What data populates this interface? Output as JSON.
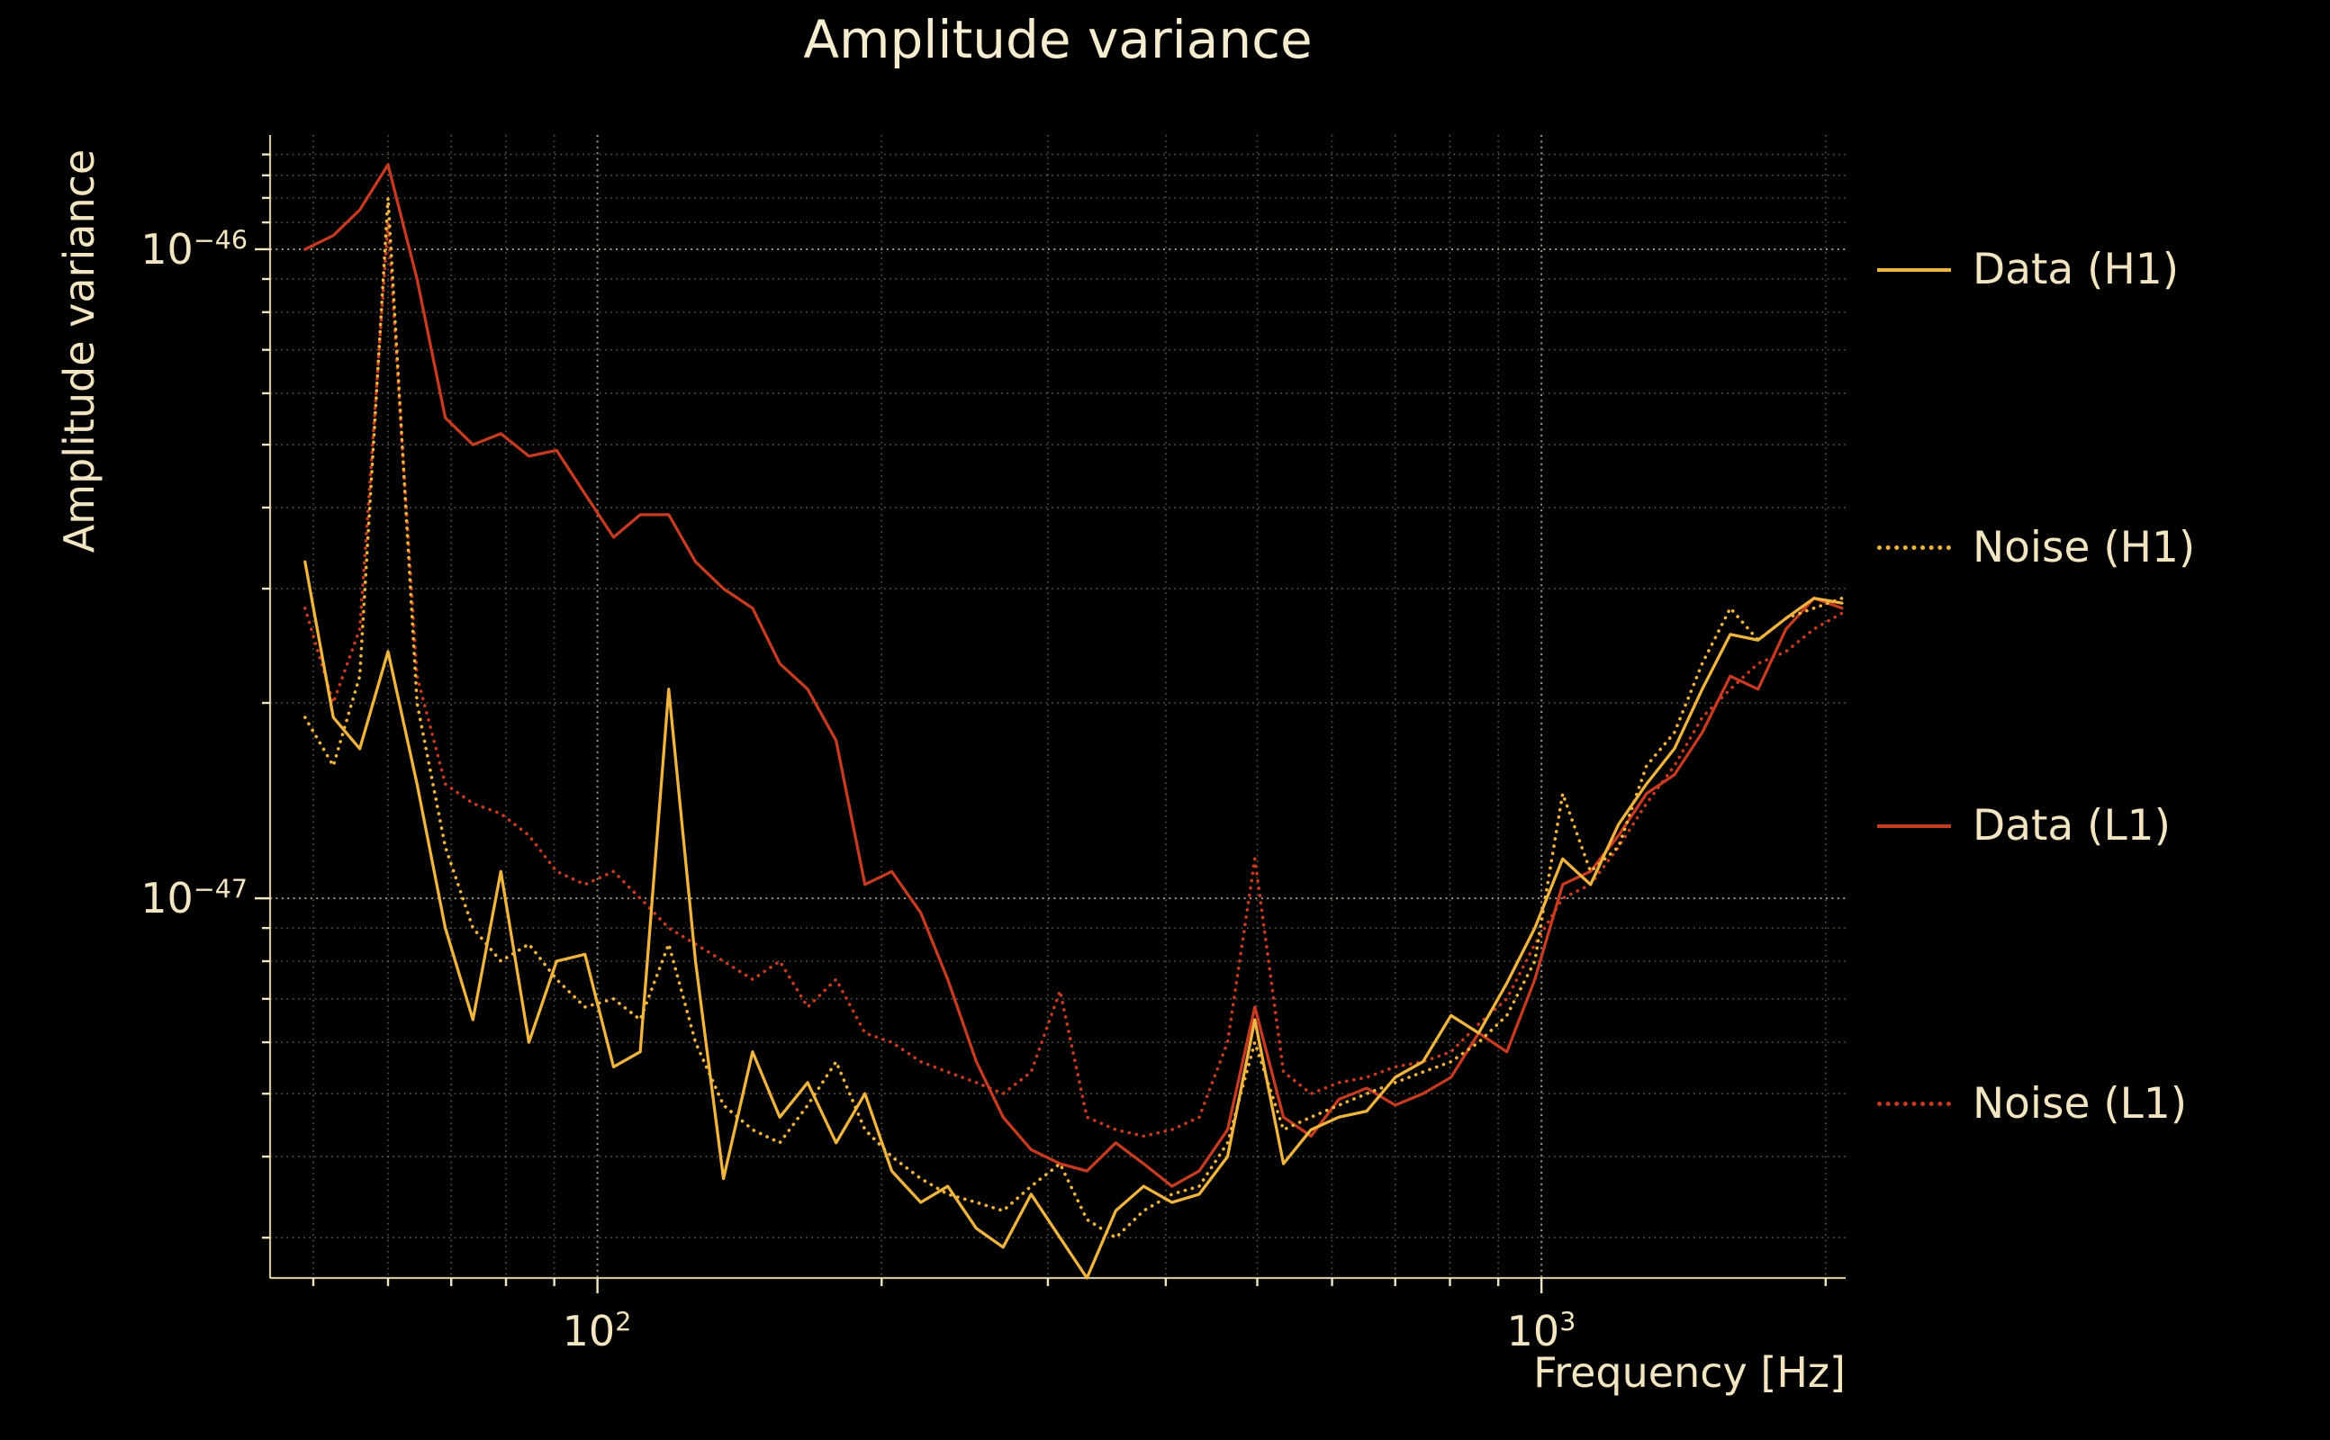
{
  "page": {
    "background": "#000000",
    "text_color": "#F3E5C2"
  },
  "chart_data": {
    "type": "line",
    "title": "Amplitude variance",
    "xlabel": "Frequency [Hz]",
    "ylabel": "Amplitude variance",
    "x_scale": "log",
    "y_scale": "log",
    "xlim": [
      45,
      2100
    ],
    "ylim_e48": [
      2.6,
      150
    ],
    "value_scale": "1e-48",
    "grid_on": true,
    "legend_position": "right-outside",
    "frequencies_hz": [
      49,
      52.5,
      56,
      60,
      64.4,
      69,
      73.8,
      79,
      84.6,
      90.5,
      97,
      104,
      111,
      119,
      127,
      136,
      146,
      156,
      167,
      179,
      192,
      205,
      220,
      235,
      252,
      269,
      288,
      309,
      330,
      354,
      379,
      406,
      434,
      465,
      497,
      533,
      570,
      610,
      653,
      700,
      749,
      802,
      858,
      919,
      984,
      1053,
      1127,
      1207,
      1292,
      1383,
      1480,
      1585,
      1696,
      1816,
      1944,
      2081
    ],
    "series": [
      {
        "name": "Data (H1)",
        "style": "solid",
        "color": "#F0B441",
        "values_e48": [
          33,
          19,
          17,
          24,
          15,
          9.0,
          6.5,
          11,
          6.0,
          8.0,
          8.2,
          5.5,
          5.8,
          21,
          8.0,
          3.7,
          5.8,
          4.6,
          5.2,
          4.2,
          5.0,
          3.8,
          3.4,
          3.6,
          3.1,
          2.9,
          3.5,
          3.0,
          2.6,
          3.3,
          3.6,
          3.4,
          3.5,
          4.0,
          6.5,
          3.9,
          4.4,
          4.6,
          4.7,
          5.3,
          5.6,
          6.6,
          6.2,
          7.4,
          9.0,
          11.5,
          10.5,
          13,
          15,
          17,
          21,
          25.5,
          25,
          27,
          29,
          28.5
        ]
      },
      {
        "name": "Noise (H1)",
        "style": "dotted",
        "color": "#F0B441",
        "values_e48": [
          19,
          16,
          22,
          120,
          20,
          12,
          9.0,
          8.0,
          8.5,
          7.5,
          6.8,
          7.0,
          6.5,
          8.5,
          6.0,
          4.8,
          4.4,
          4.2,
          4.8,
          5.6,
          4.4,
          4.0,
          3.7,
          3.5,
          3.4,
          3.3,
          3.6,
          3.9,
          3.2,
          3.0,
          3.3,
          3.5,
          3.6,
          4.2,
          6.0,
          4.4,
          4.6,
          4.8,
          5.0,
          5.2,
          5.4,
          5.6,
          6.0,
          6.6,
          8.0,
          14.5,
          11,
          12,
          16,
          18,
          23,
          28,
          25,
          27,
          28,
          29
        ]
      },
      {
        "name": "Data (L1)",
        "style": "solid",
        "color": "#C43B22",
        "values_e48": [
          100,
          105,
          115,
          135,
          90,
          55,
          50,
          52,
          48,
          49,
          42,
          36,
          39,
          39,
          33,
          30,
          28,
          23,
          21,
          17.5,
          10.5,
          11,
          9.5,
          7.5,
          5.6,
          4.6,
          4.1,
          3.9,
          3.8,
          4.2,
          3.9,
          3.6,
          3.8,
          4.4,
          6.8,
          4.6,
          4.3,
          4.9,
          5.1,
          4.8,
          5.0,
          5.3,
          6.2,
          5.8,
          7.5,
          10.5,
          11,
          12.5,
          14.5,
          15.5,
          18,
          22,
          21,
          26,
          29,
          28
        ]
      },
      {
        "name": "Noise (L1)",
        "style": "dotted",
        "color": "#C43B22",
        "values_e48": [
          28,
          20,
          26,
          110,
          22,
          15,
          14,
          13.5,
          12.5,
          11,
          10.5,
          11,
          10,
          9.0,
          8.5,
          8.0,
          7.5,
          8.0,
          6.8,
          7.5,
          6.2,
          6.0,
          5.6,
          5.4,
          5.2,
          5.0,
          5.4,
          7.2,
          4.6,
          4.4,
          4.3,
          4.4,
          4.6,
          6.0,
          11.5,
          5.4,
          5.0,
          5.2,
          5.3,
          5.5,
          5.6,
          5.8,
          6.4,
          7.0,
          8.5,
          10,
          10.5,
          12,
          14,
          16,
          19,
          21,
          23,
          24,
          26,
          27.5
        ]
      }
    ],
    "x_ticks": [
      {
        "base": "10",
        "exp": "2",
        "value": 100
      },
      {
        "base": "10",
        "exp": "3",
        "value": 1000
      }
    ],
    "y_ticks": [
      {
        "base": "10",
        "exp": "−46",
        "value_e48": 100
      },
      {
        "base": "10",
        "exp": "−47",
        "value_e48": 10
      }
    ],
    "grid": {
      "x_minor": [
        50,
        60,
        70,
        80,
        90,
        200,
        300,
        400,
        500,
        600,
        700,
        800,
        900,
        2000
      ],
      "x_major": [
        100,
        1000
      ],
      "y_minor_e48": [
        3,
        4,
        5,
        6,
        7,
        8,
        9,
        20,
        30,
        40,
        50,
        60,
        70,
        80,
        90,
        110,
        120,
        130,
        140
      ],
      "y_major_e48": [
        10,
        100
      ],
      "color": "#F3E5C2"
    }
  }
}
